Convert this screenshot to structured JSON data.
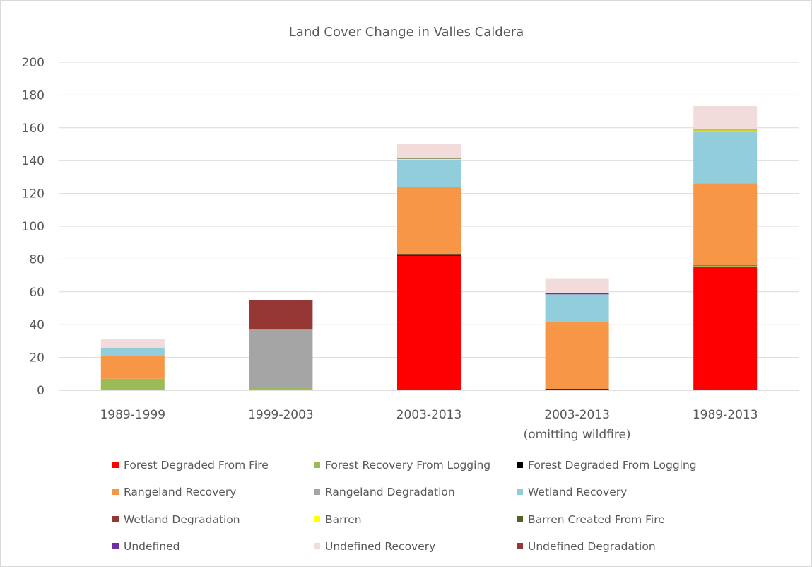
{
  "chart_data": {
    "type": "bar",
    "stacked": true,
    "title": "Land Cover Change in Valles Caldera",
    "xlabel": "",
    "ylabel": "",
    "ylim": [
      0,
      200
    ],
    "yticks": [
      0,
      20,
      40,
      60,
      80,
      100,
      120,
      140,
      160,
      180,
      200
    ],
    "grid": true,
    "legend_position": "bottom",
    "categories": [
      [
        "1989-1999"
      ],
      [
        "1999-2003"
      ],
      [
        "2003-2013"
      ],
      [
        "2003-2013",
        "(omitting wildfire)"
      ],
      [
        "1989-2013"
      ]
    ],
    "series": [
      {
        "name": "Forest Degraded From Fire",
        "color": "#ff0000",
        "values": [
          0,
          0,
          82,
          0,
          75.5
        ]
      },
      {
        "name": "Forest Recovery From Logging",
        "color": "#9bbb59",
        "values": [
          7,
          2,
          0,
          0,
          0.5
        ]
      },
      {
        "name": "Forest Degraded From Logging",
        "color": "#000000",
        "values": [
          0,
          0,
          1,
          0.8,
          0.2
        ]
      },
      {
        "name": "Rangeland Recovery",
        "color": "#f79646",
        "values": [
          14,
          0,
          41,
          41,
          50
        ]
      },
      {
        "name": "Rangeland Degradation",
        "color": "#a5a5a5",
        "values": [
          0,
          35,
          0,
          0,
          0
        ]
      },
      {
        "name": "Wetland Recovery",
        "color": "#92cddc",
        "values": [
          5,
          0,
          16.5,
          16.7,
          31.5
        ]
      },
      {
        "name": "Wetland Degradation",
        "color": "#953735",
        "values": [
          0,
          18,
          0,
          0,
          0
        ]
      },
      {
        "name": "Barren",
        "color": "#ffff00",
        "values": [
          0,
          0,
          0.5,
          0,
          0.8
        ]
      },
      {
        "name": "Barren Created From Fire",
        "color": "#4f6228",
        "values": [
          0,
          0,
          0.3,
          0,
          0.3
        ]
      },
      {
        "name": "Undefined",
        "color": "#7030a0",
        "values": [
          0,
          0,
          0,
          0.8,
          0
        ]
      },
      {
        "name": "Undefined Recovery",
        "color": "#f2dcdb",
        "values": [
          5,
          0,
          9,
          9,
          14.5
        ]
      },
      {
        "name": "Undefined Degradation",
        "color": "#953735",
        "values": [
          0,
          0,
          0,
          0,
          0
        ]
      }
    ]
  }
}
